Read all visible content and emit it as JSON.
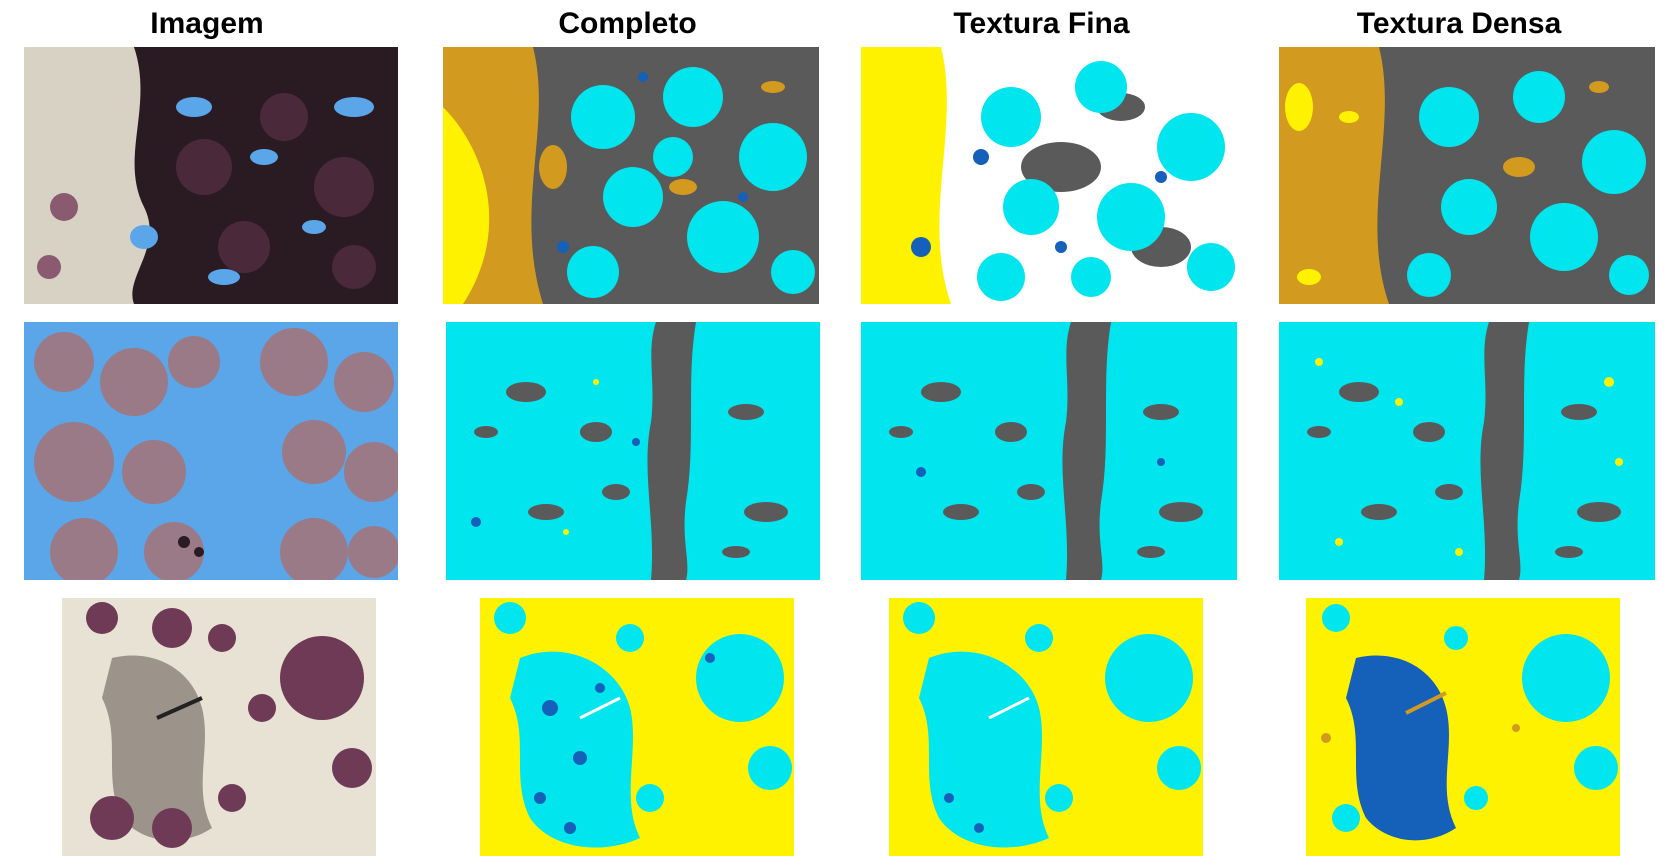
{
  "columns": [
    {
      "title": "Imagem"
    },
    {
      "title": "Completo"
    },
    {
      "title": "Textura Fina"
    },
    {
      "title": "Textura Densa"
    }
  ],
  "rows": [
    {
      "row": 1,
      "panels": [
        "photo-dark",
        "seg",
        "seg",
        "seg"
      ]
    },
    {
      "row": 2,
      "panels": [
        "photo-blue",
        "seg",
        "seg",
        "seg"
      ]
    },
    {
      "row": 3,
      "panels": [
        "photo-light",
        "seg",
        "seg",
        "seg"
      ]
    }
  ],
  "colors": {
    "cyan": "#00e5ee",
    "yellow": "#fff200",
    "ochre": "#d29a1e",
    "gray": "#5a5a5a",
    "blue": "#1560b8",
    "white": "#ffffff",
    "photo_dark": "#2a1a22",
    "photo_pink": "#9a7a86",
    "photo_blue": "#5aa6e8",
    "photo_beige": "#e8e2d4",
    "photo_grain": "#6e3a55"
  }
}
